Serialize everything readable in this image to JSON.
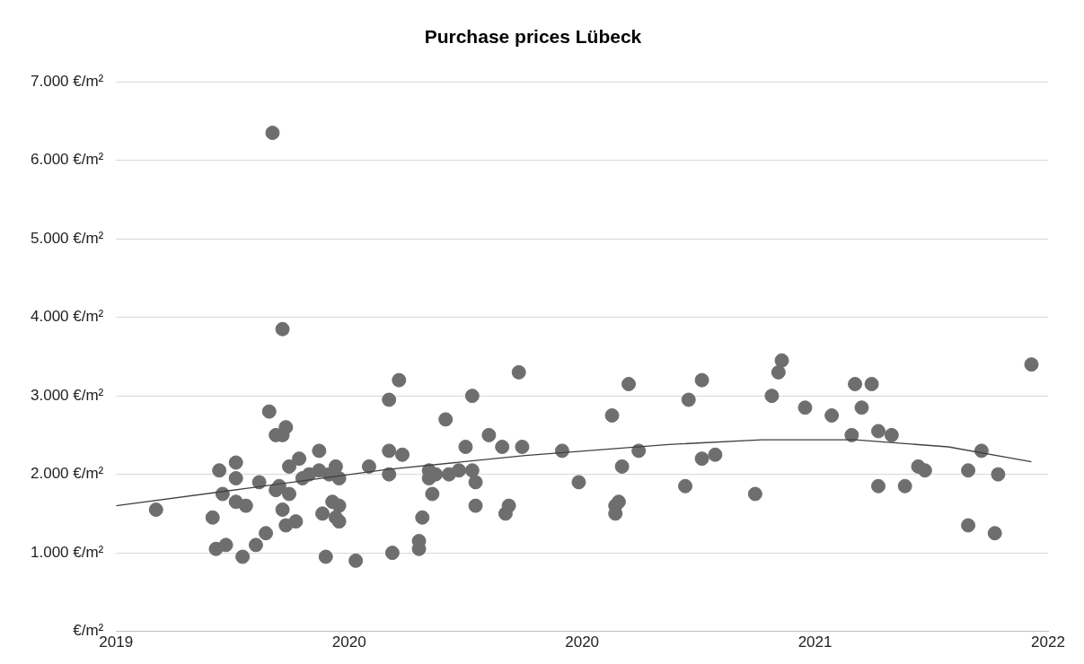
{
  "chart_data": {
    "type": "scatter",
    "title": "Purchase prices Lübeck",
    "grid": "y",
    "legend": false,
    "marker": "circle",
    "xlim": [
      2019.0,
      2021.8
    ],
    "xticks": [
      {
        "value": 2019.0,
        "label": "2019"
      },
      {
        "value": 2019.7,
        "label": "2020"
      },
      {
        "value": 2020.4,
        "label": "2020"
      },
      {
        "value": 2021.1,
        "label": "2021"
      },
      {
        "value": 2021.8,
        "label": "2022"
      }
    ],
    "ylim": [
      0,
      7000
    ],
    "yticks": [
      {
        "value": 0,
        "label": "€/m²"
      },
      {
        "value": 1000,
        "label": "1.000 €/m²"
      },
      {
        "value": 2000,
        "label": "2.000 €/m²"
      },
      {
        "value": 3000,
        "label": "3.000 €/m²"
      },
      {
        "value": 4000,
        "label": "4.000 €/m²"
      },
      {
        "value": 5000,
        "label": "5.000 €/m²"
      },
      {
        "value": 6000,
        "label": "6.000 €/m²"
      },
      {
        "value": 7000,
        "label": "7.000 €/m²"
      }
    ],
    "series": [
      {
        "color": "#6e6e6e",
        "x": [
          2019.12,
          2019.29,
          2019.3,
          2019.31,
          2019.32,
          2019.33,
          2019.36,
          2019.36,
          2019.36,
          2019.38,
          2019.39,
          2019.42,
          2019.43,
          2019.45,
          2019.46,
          2019.47,
          2019.48,
          2019.48,
          2019.49,
          2019.5,
          2019.5,
          2019.5,
          2019.51,
          2019.51,
          2019.52,
          2019.52,
          2019.54,
          2019.55,
          2019.56,
          2019.58,
          2019.61,
          2019.61,
          2019.62,
          2019.63,
          2019.64,
          2019.65,
          2019.66,
          2019.66,
          2019.67,
          2019.67,
          2019.67,
          2019.72,
          2019.76,
          2019.82,
          2019.82,
          2019.82,
          2019.83,
          2019.85,
          2019.86,
          2019.91,
          2019.91,
          2019.92,
          2019.94,
          2019.94,
          2019.95,
          2019.96,
          2019.99,
          2020.0,
          2020.03,
          2020.05,
          2020.07,
          2020.07,
          2020.08,
          2020.08,
          2020.12,
          2020.16,
          2020.17,
          2020.18,
          2020.21,
          2020.22,
          2020.34,
          2020.39,
          2020.49,
          2020.5,
          2020.5,
          2020.51,
          2020.52,
          2020.54,
          2020.57,
          2020.71,
          2020.72,
          2020.76,
          2020.76,
          2020.8,
          2020.92,
          2020.97,
          2020.99,
          2021.0,
          2021.07,
          2021.15,
          2021.21,
          2021.22,
          2021.24,
          2021.27,
          2021.29,
          2021.29,
          2021.33,
          2021.37,
          2021.41,
          2021.43,
          2021.56,
          2021.56,
          2021.6,
          2021.64,
          2021.65,
          2021.75
        ],
        "values": [
          1550,
          1450,
          1050,
          2050,
          1750,
          1100,
          2150,
          1950,
          1650,
          950,
          1600,
          1100,
          1900,
          1250,
          2800,
          6350,
          2500,
          1800,
          1850,
          3850,
          2500,
          1550,
          2600,
          1350,
          2100,
          1750,
          1400,
          2200,
          1950,
          2000,
          2300,
          2050,
          1500,
          950,
          2000,
          1650,
          2100,
          1450,
          1950,
          1600,
          1400,
          900,
          2100,
          2950,
          2300,
          2000,
          1000,
          3200,
          2250,
          1050,
          1150,
          1450,
          2050,
          1950,
          1750,
          2000,
          2700,
          2000,
          2050,
          2350,
          3000,
          2050,
          1900,
          1600,
          2500,
          2350,
          1500,
          1600,
          3300,
          2350,
          2300,
          1900,
          2750,
          1600,
          1500,
          1650,
          2100,
          3150,
          2300,
          1850,
          2950,
          3200,
          2200,
          2250,
          1750,
          3000,
          3300,
          3450,
          2850,
          2750,
          2500,
          3150,
          2850,
          3150,
          1850,
          2550,
          2500,
          1850,
          2100,
          2050,
          2050,
          1350,
          2300,
          1250,
          2000,
          3400
        ]
      },
      {
        "type": "line",
        "color": "#404040",
        "marker": "none",
        "x": [
          2019.0,
          2019.39,
          2019.81,
          2020.23,
          2020.66,
          2020.94,
          2021.22,
          2021.5,
          2021.75
        ],
        "values": [
          1600,
          1820,
          2060,
          2240,
          2380,
          2440,
          2440,
          2350,
          2160
        ]
      }
    ]
  }
}
